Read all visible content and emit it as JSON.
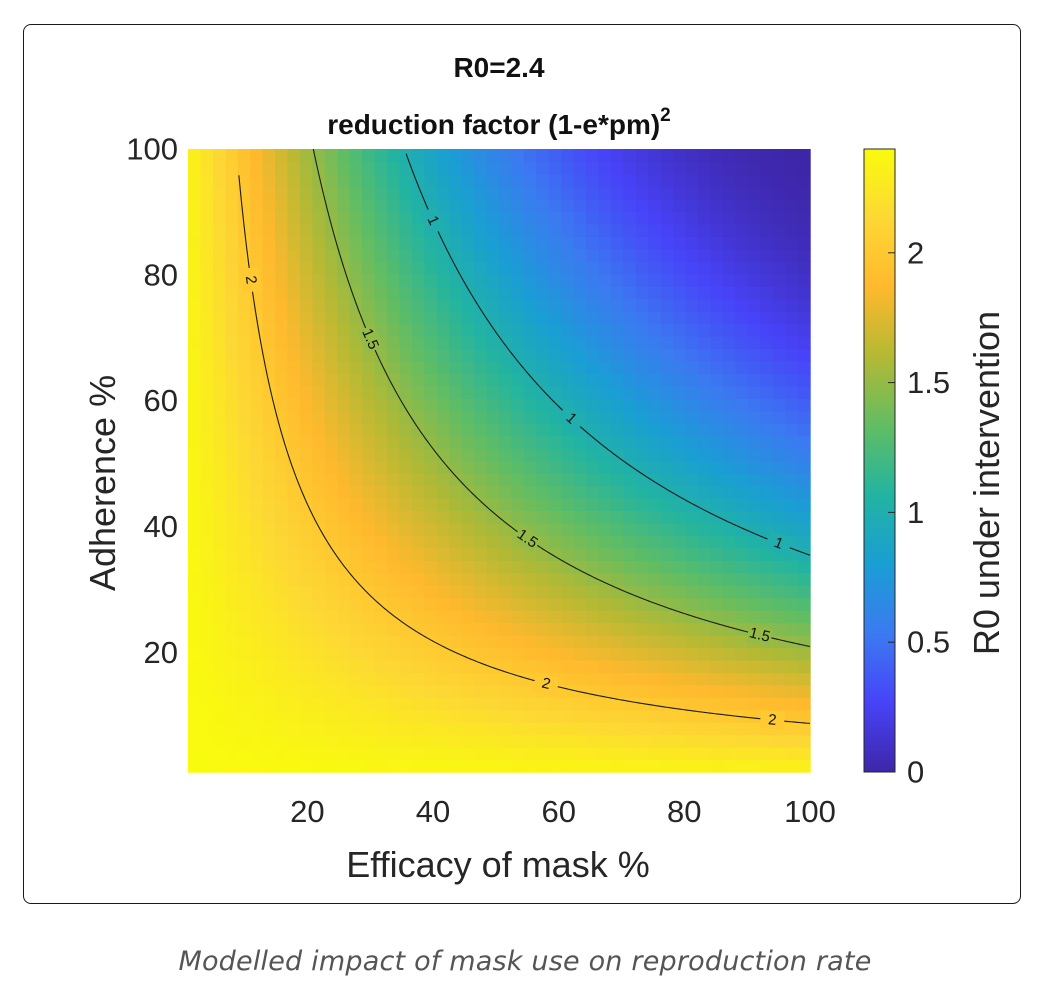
{
  "figure": {
    "caption": "Modelled impact of mask use on reproduction rate"
  },
  "chart_data": {
    "type": "heatmap",
    "title": "R0=2.4",
    "subtitle_base": "reduction factor (1-e*pm)",
    "subtitle_superscript": "2",
    "xlabel": "Efficacy of mask %",
    "ylabel": "Adherence %",
    "xlim": [
      1,
      100
    ],
    "ylim": [
      1,
      100
    ],
    "x_ticks": [
      20,
      40,
      60,
      80,
      100
    ],
    "y_ticks": [
      20,
      40,
      60,
      80,
      100
    ],
    "R0": 2.4,
    "grid_resolution": 50,
    "colorbar": {
      "label": "R0 under intervention",
      "range": [
        0,
        2.4
      ],
      "ticks": [
        0,
        0.5,
        1,
        1.5,
        2
      ],
      "colormap": "parula",
      "colormap_stops": [
        "#3e26a8",
        "#4743f8",
        "#3b7af1",
        "#1a9ed4",
        "#22b4a1",
        "#61bd63",
        "#b3b934",
        "#ffb92d",
        "#fdd834",
        "#f9fb0e"
      ]
    },
    "contours": [
      {
        "level": 2,
        "labels": [
          "2"
        ]
      },
      {
        "level": 1.5,
        "labels": [
          "1.5"
        ]
      },
      {
        "level": 1,
        "labels": [
          "1"
        ]
      }
    ]
  }
}
